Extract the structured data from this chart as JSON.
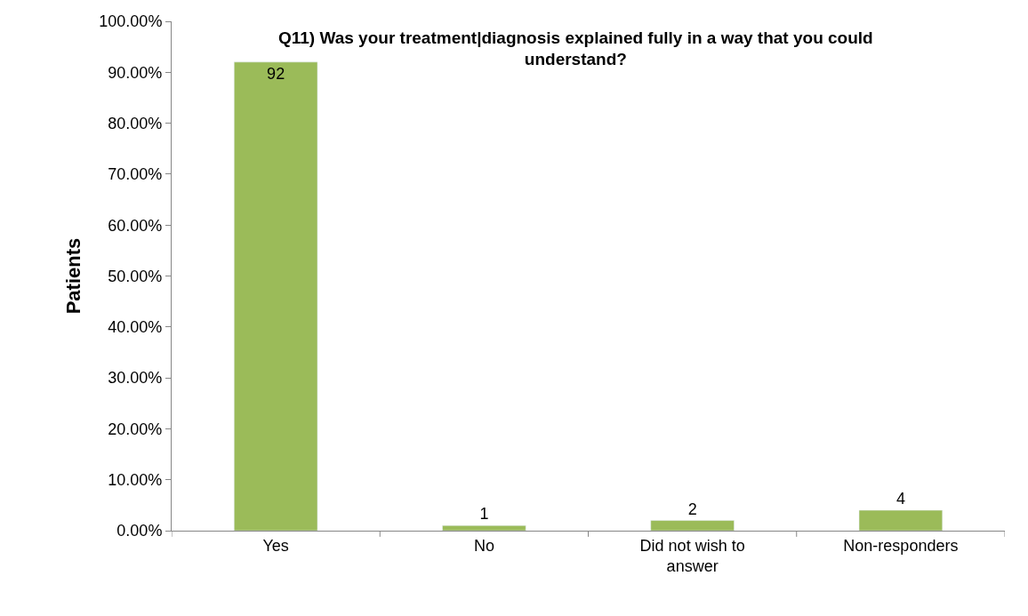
{
  "chart_data": {
    "type": "bar",
    "title": "Q11) Was your treatment|diagnosis explained fully in a way that you could understand?",
    "ylabel": "Patients",
    "categories": [
      "Yes",
      "No",
      "Did not wish to answer",
      "Non-responders"
    ],
    "values": [
      92,
      1,
      2,
      4
    ],
    "data_labels": true,
    "color": "#9bbb59",
    "ylim": [
      0,
      100
    ],
    "yticks": [
      {
        "value": 0,
        "label": "0.00%"
      },
      {
        "value": 10,
        "label": "10.00%"
      },
      {
        "value": 20,
        "label": "20.00%"
      },
      {
        "value": 30,
        "label": "30.00%"
      },
      {
        "value": 40,
        "label": "40.00%"
      },
      {
        "value": 50,
        "label": "50.00%"
      },
      {
        "value": 60,
        "label": "60.00%"
      },
      {
        "value": 70,
        "label": "70.00%"
      },
      {
        "value": 80,
        "label": "80.00%"
      },
      {
        "value": 90,
        "label": "90.00%"
      },
      {
        "value": 100,
        "label": "100.00%"
      }
    ],
    "legend": false
  }
}
